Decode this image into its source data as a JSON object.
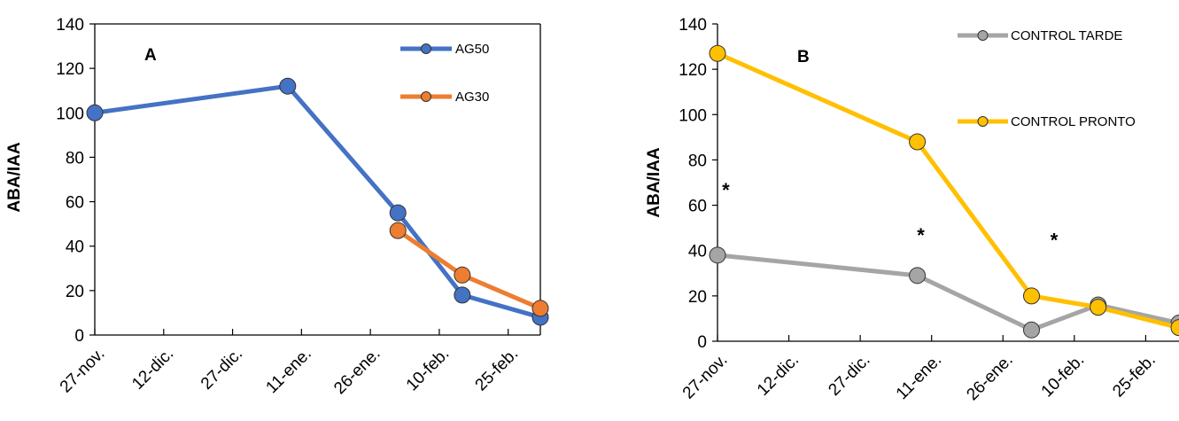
{
  "chart_data": [
    {
      "type": "line",
      "panel_label": "A",
      "ylabel": "ABA/IAA",
      "ylim": [
        0,
        140
      ],
      "yticks": [
        0,
        20,
        40,
        60,
        80,
        100,
        120,
        140
      ],
      "xlim": [
        "2023-11-27",
        "2024-03-03"
      ],
      "xticks": [
        {
          "label": "27-nov.",
          "date": "2023-11-27"
        },
        {
          "label": "12-dic.",
          "date": "2023-12-12"
        },
        {
          "label": "27-dic.",
          "date": "2023-12-27"
        },
        {
          "label": "11-ene.",
          "date": "2024-01-11"
        },
        {
          "label": "26-ene.",
          "date": "2024-01-26"
        },
        {
          "label": "10-feb.",
          "date": "2024-02-10"
        },
        {
          "label": "25-feb.",
          "date": "2024-02-25"
        }
      ],
      "legend_position": "top-right",
      "series": [
        {
          "name": "AG50",
          "color": "#4472C4",
          "x": [
            "2023-11-27",
            "2024-01-08",
            "2024-02-01",
            "2024-02-15",
            "2024-03-03"
          ],
          "y": [
            100,
            112,
            55,
            18,
            8
          ]
        },
        {
          "name": "AG30",
          "color": "#ED7D31",
          "x": [
            "2024-02-01",
            "2024-02-15",
            "2024-03-03"
          ],
          "y": [
            47,
            27,
            12
          ]
        }
      ]
    },
    {
      "type": "line",
      "panel_label": "B",
      "ylabel": "ABA/IAA",
      "ylim": [
        0,
        140
      ],
      "yticks": [
        0,
        20,
        40,
        60,
        80,
        100,
        120,
        140
      ],
      "xlim": [
        "2023-11-27",
        "2024-03-03"
      ],
      "xticks": [
        {
          "label": "27-nov.",
          "date": "2023-11-27"
        },
        {
          "label": "12-dic.",
          "date": "2023-12-12"
        },
        {
          "label": "27-dic.",
          "date": "2023-12-27"
        },
        {
          "label": "11-ene.",
          "date": "2024-01-11"
        },
        {
          "label": "26-ene.",
          "date": "2024-01-26"
        },
        {
          "label": "10-feb.",
          "date": "2024-02-10"
        },
        {
          "label": "25-feb.",
          "date": "2024-02-25"
        }
      ],
      "legend_position": "top-right",
      "annotations": [
        {
          "text": "*",
          "date": "2023-11-28",
          "y": 70
        },
        {
          "text": "*",
          "date": "2024-01-08",
          "y": 50
        },
        {
          "text": "*",
          "date": "2024-02-05",
          "y": 48
        }
      ],
      "series": [
        {
          "name": "CONTROL TARDE",
          "color": "#A5A5A5",
          "x": [
            "2023-11-27",
            "2024-01-08",
            "2024-02-01",
            "2024-02-15",
            "2024-03-03"
          ],
          "y": [
            38,
            29,
            5,
            16,
            8
          ]
        },
        {
          "name": "CONTROL PRONTO",
          "color": "#FFC000",
          "x": [
            "2023-11-27",
            "2024-01-08",
            "2024-02-01",
            "2024-02-15",
            "2024-03-03"
          ],
          "y": [
            127,
            88,
            20,
            15,
            6
          ]
        }
      ]
    }
  ]
}
